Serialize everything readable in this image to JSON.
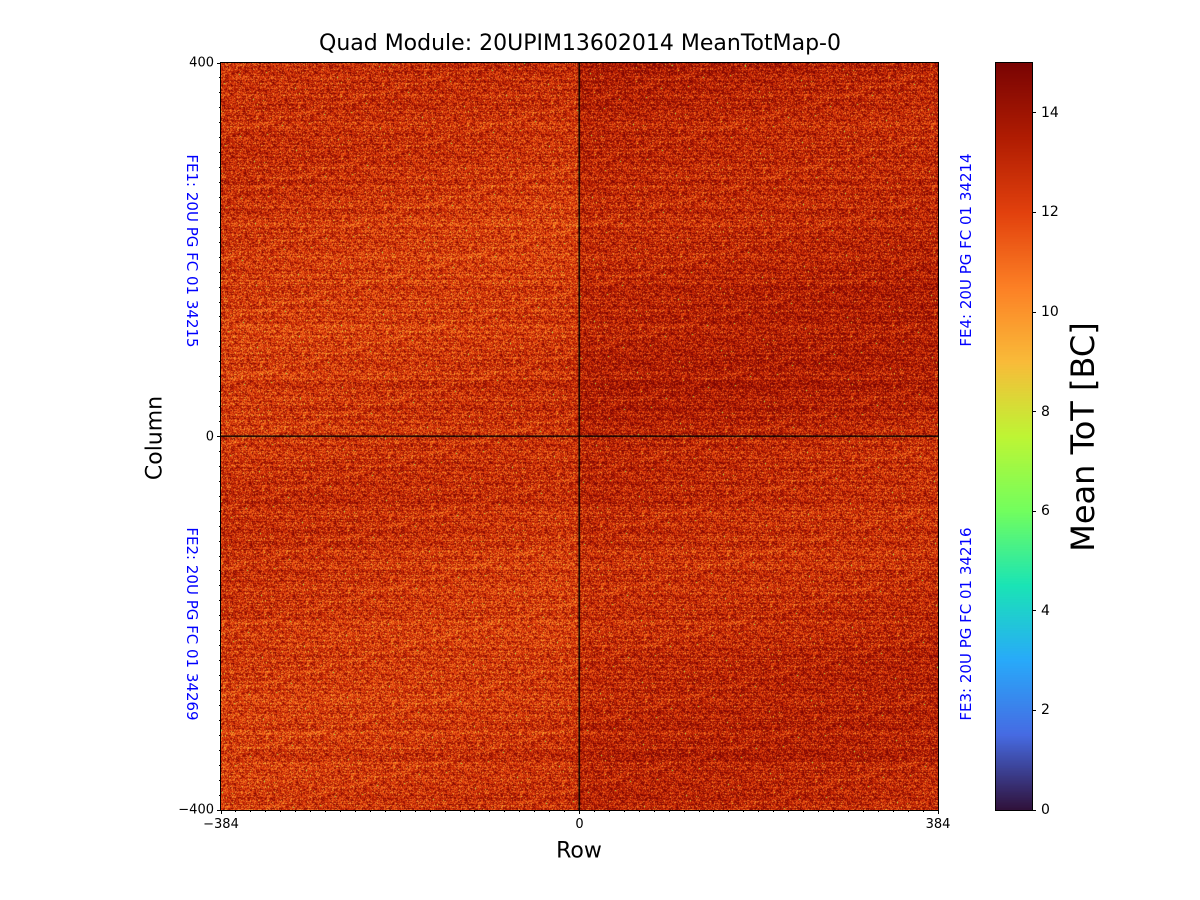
{
  "chart_data": {
    "type": "heatmap",
    "title": "Quad Module: 20UPIM13602014 MeanTotMap-0",
    "xlabel": "Row",
    "ylabel": "Column",
    "xlim": [
      -384,
      384
    ],
    "ylim": [
      -400,
      400
    ],
    "xticks": [
      "−384",
      "0",
      "384"
    ],
    "yticks": [
      "400",
      "0",
      "−400"
    ],
    "colorbar": {
      "label": "Mean ToT [BC]",
      "range": [
        0,
        15
      ],
      "ticks": [
        "0",
        "2",
        "4",
        "6",
        "8",
        "10",
        "12",
        "14"
      ],
      "colormap": "turbo"
    },
    "quadrants": [
      {
        "label": "FE1: 20U PG FC 01 34215",
        "position": "top-left",
        "mean_tot": 12.6
      },
      {
        "label": "FE4: 20U PG FC 01 34214",
        "position": "top-right",
        "mean_tot": 13.3
      },
      {
        "label": "FE2: 20U PG FC 01 34269",
        "position": "bottom-left",
        "mean_tot": 12.6
      },
      {
        "label": "FE3: 20U PG FC 01 34216",
        "position": "bottom-right",
        "mean_tot": 13.1
      }
    ]
  }
}
